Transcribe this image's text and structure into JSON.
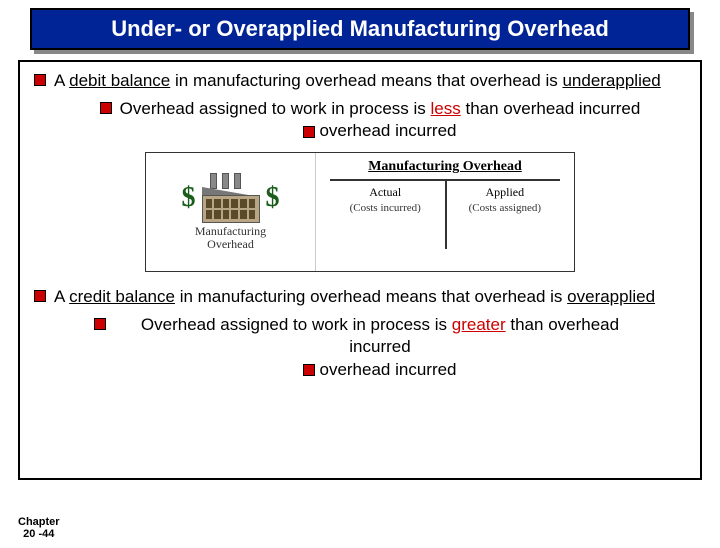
{
  "title": "Under- or Overapplied Manufacturing Overhead",
  "point1": {
    "pre": "A ",
    "ul": "debit balance",
    "post": " in manufacturing overhead means that overhead is ",
    "ul2": "underapplied"
  },
  "point1_sub": {
    "pre": "Overhead assigned to work in process is ",
    "key": "less",
    "post": " than overhead incurred"
  },
  "diagram": {
    "dollar": "$",
    "left_label_l1": "Manufacturing",
    "left_label_l2": "Overhead",
    "mo_title": "Manufacturing Overhead",
    "left_head": "Actual",
    "left_sub": "(Costs incurred)",
    "right_head": "Applied",
    "right_sub": "(Costs assigned)",
    "colors": {
      "dollar": "#1a5d1a",
      "line": "#333333"
    }
  },
  "point2": {
    "pre": "A ",
    "ul": "credit balance",
    "post": " in manufacturing overhead means that overhead is ",
    "ul2": "overapplied"
  },
  "point2_sub": {
    "pre": "Overhead assigned to work in process is ",
    "key": "greater",
    "post": " than overhead incurred"
  },
  "chapter_l1": "Chapter",
  "chapter_l2": "20 -44",
  "style": {
    "title_bg": "#002395",
    "bullet_color": "#cc0000",
    "title_fontsize": 22,
    "body_fontsize": 17
  }
}
